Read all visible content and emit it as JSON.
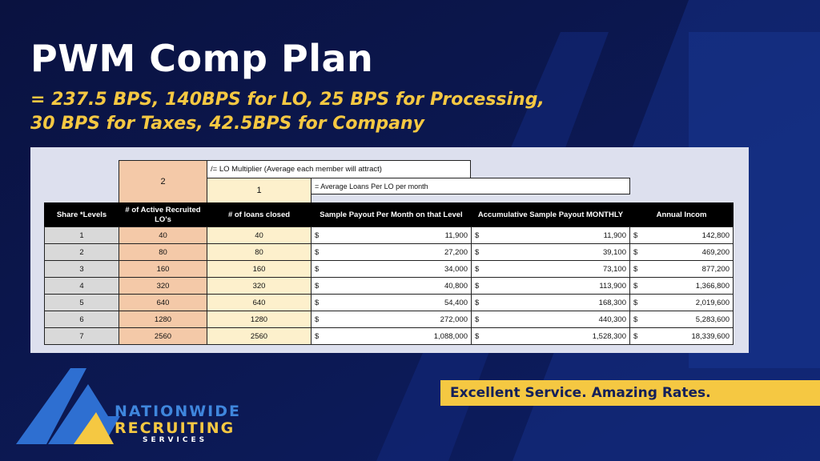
{
  "header": {
    "title": "PWM Comp Plan",
    "subtitle_lines": [
      "= 237.5 BPS, 140BPS for LO, 25 BPS for Processing,",
      "30 BPS for Taxes, 42.5BPS for Company"
    ]
  },
  "table": {
    "multiplier": "2",
    "multiplier_note": "/= LO Multiplier (Average each member will attract)",
    "loans_per_lo": "1",
    "loans_per_lo_note": "= Average Loans Per LO per month",
    "currency": "$",
    "headers": [
      "Share *Levels",
      "# of Active Recruited LO's",
      "# of loans closed",
      "Sample Payout Per Month on that Level",
      "Accumulative Sample Payout  MONTHLY",
      "Annual Incom"
    ],
    "rows": [
      [
        "1",
        "40",
        "40",
        "11,900",
        "11,900",
        "142,800"
      ],
      [
        "2",
        "80",
        "80",
        "27,200",
        "39,100",
        "469,200"
      ],
      [
        "3",
        "160",
        "160",
        "34,000",
        "73,100",
        "877,200"
      ],
      [
        "4",
        "320",
        "320",
        "40,800",
        "113,900",
        "1,366,800"
      ],
      [
        "5",
        "640",
        "640",
        "54,400",
        "168,300",
        "2,019,600"
      ],
      [
        "6",
        "1280",
        "1280",
        "272,000",
        "440,300",
        "5,283,600"
      ],
      [
        "7",
        "2560",
        "2560",
        "1,088,000",
        "1,528,300",
        "18,339,600"
      ]
    ]
  },
  "tagline": "Excellent Service. Amazing Rates.",
  "logo": {
    "line1": "NATIONWIDE",
    "line2": "RECRUITING",
    "line3": "SERVICES"
  }
}
